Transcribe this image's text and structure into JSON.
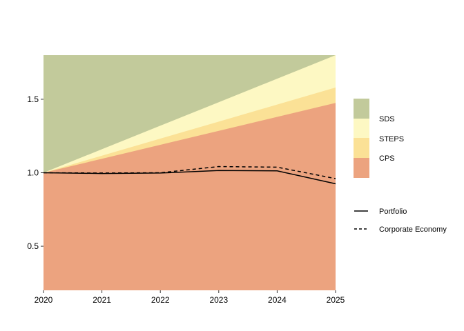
{
  "chart_data": {
    "type": "area",
    "x": [
      2020,
      2021,
      2022,
      2023,
      2024,
      2025
    ],
    "xticks": [
      "2020",
      "2021",
      "2022",
      "2023",
      "2024",
      "2025"
    ],
    "yticks": [
      "0.5",
      "1.0",
      "1.5"
    ],
    "ytick_values": [
      0.5,
      1.0,
      1.5
    ],
    "xlim": [
      2020,
      2025
    ],
    "ylim": [
      0.2,
      1.8
    ],
    "grid": false,
    "legend_position": "right",
    "scenario_bands": [
      {
        "name": "CPS",
        "color": "#eca37f",
        "upper": [
          1.0,
          1.095,
          1.19,
          1.285,
          1.38,
          1.475
        ]
      },
      {
        "name": "STEPS",
        "color": "#fbe196",
        "upper": [
          1.0,
          1.116,
          1.232,
          1.348,
          1.464,
          1.58
        ]
      },
      {
        "name": "SDS",
        "color": "#fdf8c3",
        "upper": [
          1.0,
          1.16,
          1.32,
          1.48,
          1.64,
          1.8
        ]
      },
      {
        "name": "",
        "color": "#c2ca9b",
        "upper": [
          1.8,
          1.8,
          1.8,
          1.8,
          1.8,
          1.8
        ]
      }
    ],
    "series": [
      {
        "name": "Portfolio",
        "dash": "solid",
        "values": [
          1.0,
          0.995,
          0.998,
          1.015,
          1.013,
          0.925
        ]
      },
      {
        "name": "Corporate Economy",
        "dash": "dashed",
        "values": [
          1.0,
          0.998,
          1.0,
          1.042,
          1.038,
          0.96
        ]
      }
    ],
    "legend_fill": [
      {
        "name": "SDS",
        "color": "#c2ca9b"
      },
      {
        "name": "STEPS",
        "color": "#fdf8c3"
      },
      {
        "name": "CPS",
        "color": "#fbe196",
        "color2": "#eca37f"
      }
    ],
    "legend_lines": [
      {
        "name": "Portfolio",
        "dash": "solid"
      },
      {
        "name": "Corporate Economy",
        "dash": "dashed"
      }
    ]
  }
}
